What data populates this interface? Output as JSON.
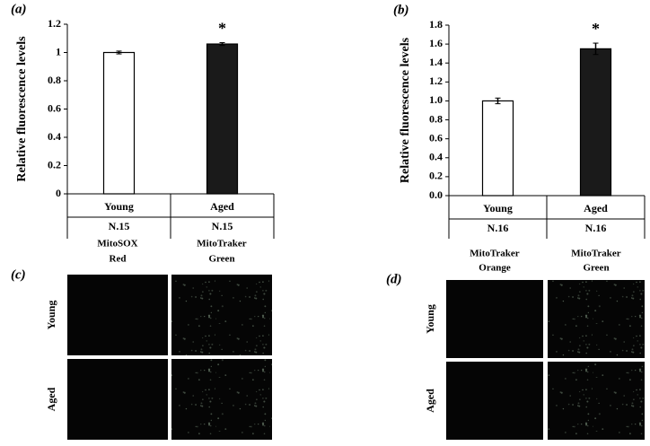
{
  "chart_data": [
    {
      "type": "bar",
      "panel_label": "(a)",
      "ylabel": "Relative fluorescence levels",
      "categories": [
        "Young",
        "Aged"
      ],
      "sample_labels": [
        "N.15",
        "N.15"
      ],
      "values": [
        1.0,
        1.06
      ],
      "errors": [
        0.01,
        0.01
      ],
      "colors": [
        "#ffffff",
        "#1a1a1a"
      ],
      "value_annotations": [
        null,
        "*"
      ],
      "ylim": [
        0,
        1.2
      ],
      "yticks": [
        0,
        0.2,
        0.4,
        0.6,
        0.8,
        1,
        1.2
      ]
    },
    {
      "type": "bar",
      "panel_label": "(b)",
      "ylabel": "Relative fluorescence levels",
      "categories": [
        "Young",
        "Aged"
      ],
      "sample_labels": [
        "N.16",
        "N.16"
      ],
      "values": [
        1.0,
        1.55
      ],
      "errors": [
        0.03,
        0.06
      ],
      "colors": [
        "#ffffff",
        "#1a1a1a"
      ],
      "value_annotations": [
        null,
        "*"
      ],
      "ylim": [
        0,
        1.8
      ],
      "yticks": [
        {
          "value": 0,
          "label": "0.0"
        },
        0.2,
        0.4,
        0.6,
        0.8,
        {
          "value": 1,
          "label": "1.0"
        },
        1.2,
        1.4,
        1.6,
        1.8
      ]
    }
  ],
  "image_panels": [
    {
      "panel_label": "(c)",
      "columns": [
        [
          "MitoSOX",
          "Red"
        ],
        [
          "MitoTraker",
          "Green"
        ]
      ],
      "rows": [
        "Young",
        "Aged"
      ]
    },
    {
      "panel_label": "(d)",
      "columns": [
        [
          "MitoTraker",
          "Orange"
        ],
        [
          "MitoTraker",
          "Green"
        ]
      ],
      "rows": [
        "Young",
        "Aged"
      ]
    }
  ]
}
